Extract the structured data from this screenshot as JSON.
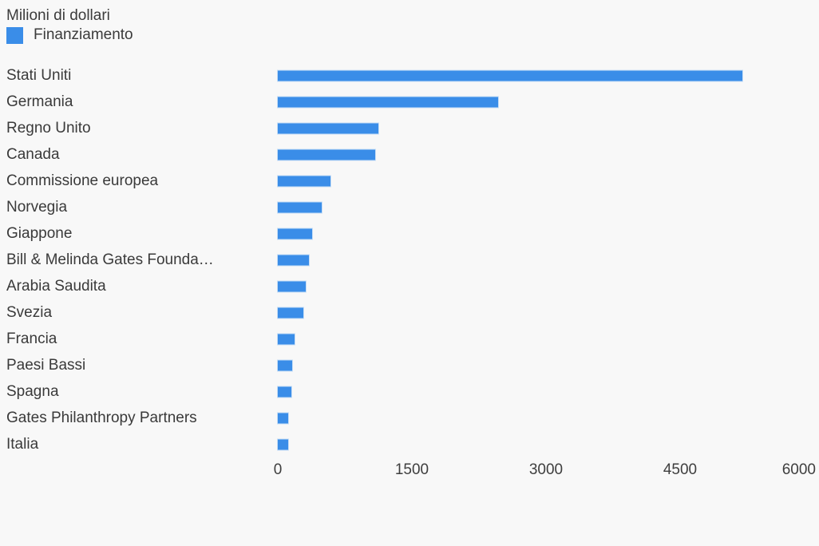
{
  "page": {
    "background_color": "#f8f8f8",
    "text_color": "#3b3b3b"
  },
  "chart_data": {
    "type": "bar",
    "orientation": "horizontal",
    "title": "Milioni di dollari",
    "legend": {
      "position": "top-left",
      "entries": [
        {
          "label": "Finanziamento",
          "color": "#3a8de8"
        }
      ]
    },
    "series_name": "Finanziamento",
    "categories": [
      "Stati Uniti",
      "Germania",
      "Regno Unito",
      "Canada",
      "Commissione europea",
      "Norvegia",
      "Giappone",
      "Bill & Melinda Gates Founda…",
      "Arabia Saudita",
      "Svezia",
      "Francia",
      "Paesi Bassi",
      "Spagna",
      "Gates Philanthropy Partners",
      "Italia"
    ],
    "values": [
      5200,
      2470,
      1125,
      1090,
      590,
      492,
      385,
      350,
      315,
      287,
      190,
      161,
      152,
      116,
      120
    ],
    "xlabel": "",
    "ylabel": "",
    "xlim": [
      0,
      6000
    ],
    "x_ticks": [
      0,
      1500,
      3000,
      4500,
      6000
    ],
    "grid": false,
    "bar_color": "#3a8de8",
    "bar_border_color": "#c7def6"
  }
}
